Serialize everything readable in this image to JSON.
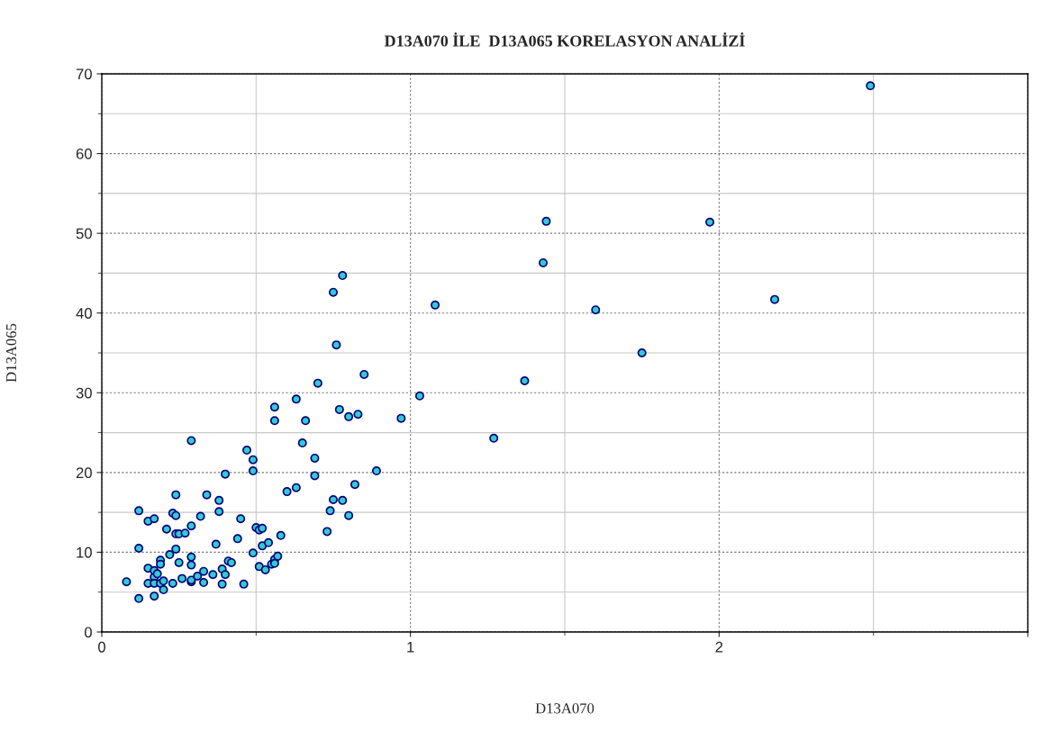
{
  "chart_data": {
    "type": "scatter",
    "title": "D13A070 İLE  D13A065 KORELASYON ANALİZİ",
    "xlabel": "D13A070",
    "ylabel": "D13A065",
    "xlim": [
      0,
      3
    ],
    "xticks": [
      0,
      1,
      2,
      {
        "value": 3,
        "label": null
      }
    ],
    "ylim": [
      0,
      70
    ],
    "yticks": [
      0,
      10,
      20,
      30,
      40,
      50,
      60,
      70
    ],
    "grid": true,
    "marker": "circle",
    "series": [
      {
        "color": "#33cccc",
        "x": [
          0.08,
          0.12,
          0.12,
          0.12,
          0.15,
          0.15,
          0.17,
          0.15,
          0.17,
          0.17,
          0.18,
          0.17,
          0.17,
          0.19,
          0.19,
          0.19,
          0.2,
          0.2,
          0.21,
          0.22,
          0.23,
          0.24,
          0.23,
          0.24,
          0.24,
          0.25,
          0.24,
          0.25,
          0.26,
          0.27,
          0.29,
          0.29,
          0.29,
          0.29,
          0.29,
          0.29,
          0.31,
          0.32,
          0.33,
          0.33,
          0.34,
          0.37,
          0.36,
          0.38,
          0.38,
          0.39,
          0.39,
          0.4,
          0.4,
          0.41,
          0.42,
          0.44,
          0.45,
          0.46,
          0.47,
          0.49,
          0.49,
          0.49,
          0.5,
          0.51,
          0.51,
          0.52,
          0.52,
          0.53,
          0.54,
          0.55,
          0.56,
          0.56,
          0.56,
          0.57,
          0.56,
          0.58,
          0.6,
          0.63,
          0.63,
          0.65,
          0.66,
          0.69,
          0.69,
          0.7,
          0.73,
          0.74,
          0.75,
          0.75,
          0.76,
          0.77,
          0.78,
          0.78,
          0.8,
          0.8,
          0.82,
          0.83,
          0.85,
          0.89,
          0.97,
          1.03,
          1.08,
          1.27,
          1.37,
          1.43,
          1.44,
          1.6,
          1.75,
          1.97,
          2.18,
          2.49
        ],
        "values": [
          6.3,
          4.2,
          10.5,
          15.2,
          8.0,
          13.9,
          14.2,
          6.1,
          6.9,
          7.7,
          7.3,
          6.1,
          4.5,
          9.0,
          8.5,
          6.1,
          5.3,
          6.4,
          12.9,
          9.7,
          14.9,
          14.6,
          6.1,
          10.4,
          12.3,
          12.3,
          17.2,
          8.7,
          6.7,
          12.4,
          13.3,
          9.4,
          8.4,
          24.0,
          6.3,
          6.5,
          7.0,
          14.5,
          6.2,
          7.6,
          17.2,
          11.0,
          7.2,
          16.5,
          15.1,
          7.9,
          6.0,
          19.8,
          7.2,
          8.9,
          8.7,
          11.7,
          14.2,
          6.0,
          22.8,
          21.6,
          20.2,
          9.9,
          13.1,
          12.8,
          8.2,
          13.0,
          10.8,
          7.8,
          11.2,
          8.5,
          26.5,
          28.2,
          9.1,
          9.5,
          8.6,
          12.1,
          17.6,
          18.1,
          29.2,
          23.7,
          26.5,
          21.8,
          19.6,
          31.2,
          12.6,
          15.2,
          16.6,
          42.6,
          36.0,
          27.9,
          16.5,
          44.7,
          27.0,
          14.6,
          18.5,
          27.3,
          32.3,
          20.2,
          26.8,
          29.6,
          41.0,
          24.3,
          31.5,
          46.3,
          51.5,
          40.4,
          35.0,
          51.4,
          41.7,
          68.5
        ]
      }
    ]
  }
}
